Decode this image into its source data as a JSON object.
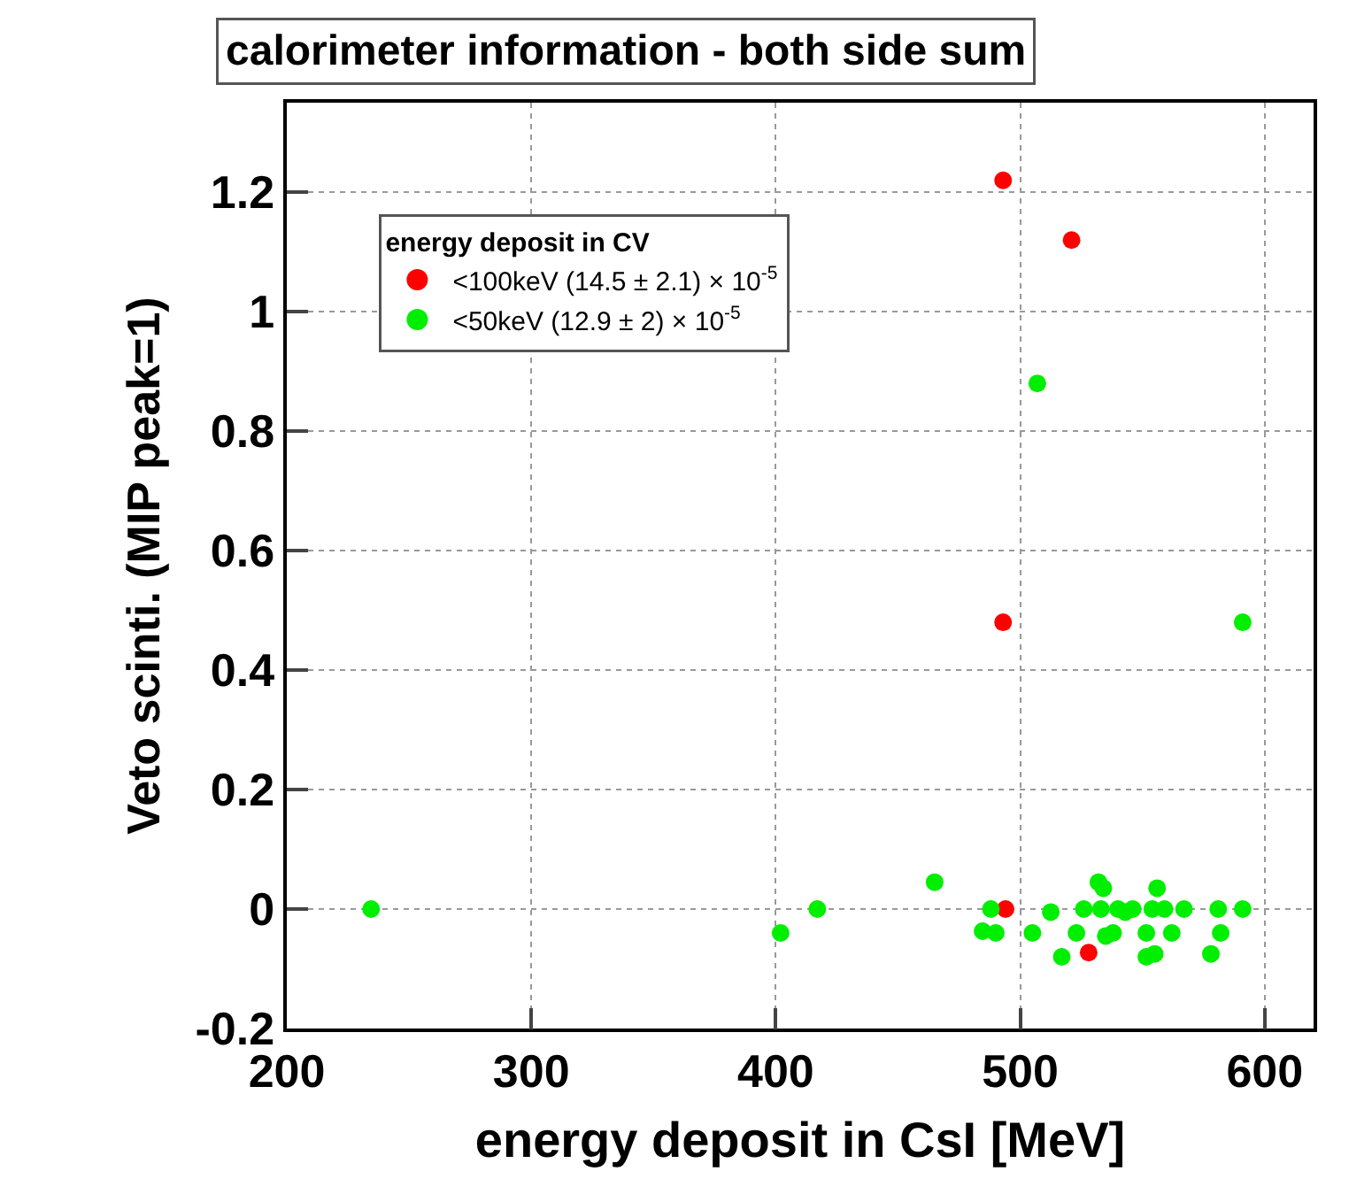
{
  "chart_data": {
    "type": "scatter",
    "title": "calorimeter information - both side sum",
    "xlabel": "energy deposit in CsI [MeV]",
    "ylabel": "Veto scinti. (MIP peak=1)",
    "legend_title": "energy deposit in CV",
    "series": [
      {
        "name": "<100keV (14.5 ± 2.1) × 10$^{-5}$",
        "color": "#ff0000",
        "x": [
          493,
          521,
          493,
          494,
          528
        ],
        "values": [
          1.22,
          1.12,
          0.48,
          0,
          -0.073
        ]
      },
      {
        "name": "<50keV (12.9 ± 2) × 10$^{-5}$",
        "color": "#00ee00",
        "x": [
          234.5,
          402,
          417,
          465,
          507,
          591,
          488,
          484.6,
          490,
          505,
          512.5,
          517,
          523,
          526,
          532,
          534,
          533,
          535,
          538,
          540,
          543,
          546,
          551.6,
          551.6,
          555,
          554,
          556,
          559,
          560,
          562,
          566,
          567,
          578,
          581,
          582,
          591
        ],
        "values": [
          0,
          -0.04,
          0,
          0.045,
          0.88,
          0.48,
          0,
          -0.037,
          -0.04,
          -0.04,
          -0.005,
          -0.08,
          -0.04,
          0,
          0.045,
          0.035,
          0,
          -0.045,
          -0.04,
          0,
          -0.005,
          0,
          -0.04,
          -0.08,
          -0.075,
          0,
          0.035,
          0,
          null,
          -0.04,
          null,
          0,
          -0.075,
          0,
          -0.04,
          0
        ]
      }
    ],
    "xlim": [
      200,
      620
    ],
    "xticks": [
      200,
      300,
      400,
      500,
      600
    ],
    "ylim": [
      -0.2,
      1.35
    ],
    "yticks": [
      -0.2,
      0,
      0.2,
      0.4,
      0.6,
      0.8,
      1,
      1.2
    ],
    "grid": true,
    "legend": "top left",
    "marker": "circle"
  }
}
